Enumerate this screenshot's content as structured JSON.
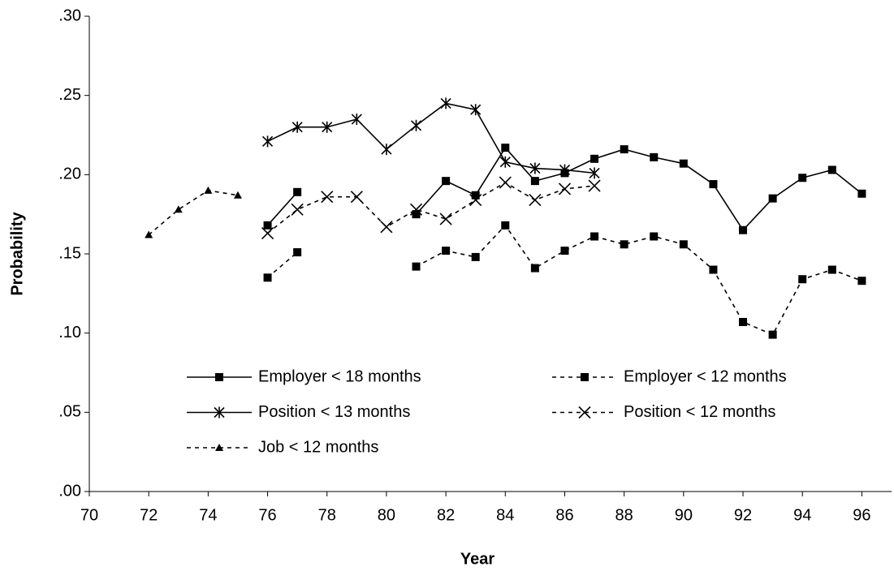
{
  "chart_data": {
    "type": "line",
    "x_label": "Year",
    "y_label": "Probability",
    "x": [
      72,
      73,
      74,
      75,
      76,
      77,
      78,
      79,
      80,
      81,
      82,
      83,
      84,
      85,
      86,
      87,
      88,
      89,
      90,
      91,
      92,
      93,
      94,
      95,
      96
    ],
    "series": [
      {
        "name": "Employer < 18 months",
        "color": "#000000",
        "style": "solid",
        "marker": "square",
        "values": [
          null,
          null,
          null,
          null,
          0.168,
          0.189,
          null,
          null,
          null,
          0.175,
          0.196,
          0.187,
          0.217,
          0.196,
          0.201,
          0.21,
          0.216,
          0.211,
          0.207,
          0.194,
          0.165,
          0.185,
          0.198,
          0.203,
          0.188
        ]
      },
      {
        "name": "Employer < 12 months",
        "color": "#000000",
        "style": "dashed",
        "marker": "square",
        "values": [
          null,
          null,
          null,
          null,
          0.135,
          0.151,
          null,
          null,
          null,
          0.142,
          0.152,
          0.148,
          0.168,
          0.141,
          0.152,
          0.161,
          0.156,
          0.161,
          0.156,
          0.14,
          0.107,
          0.099,
          0.134,
          0.14,
          0.133
        ]
      },
      {
        "name": "Position < 13 months",
        "color": "#000000",
        "style": "solid",
        "marker": "asterisk",
        "values": [
          null,
          null,
          null,
          null,
          0.221,
          0.23,
          0.23,
          0.235,
          0.216,
          0.231,
          0.245,
          0.241,
          0.208,
          0.204,
          0.203,
          0.201,
          null,
          null,
          null,
          null,
          null,
          null,
          null,
          null,
          null
        ]
      },
      {
        "name": "Position < 12 months",
        "color": "#000000",
        "style": "dashed",
        "marker": "cross",
        "values": [
          null,
          null,
          null,
          null,
          0.163,
          0.178,
          0.186,
          0.186,
          0.167,
          0.178,
          0.172,
          0.184,
          0.195,
          0.184,
          0.191,
          0.193,
          null,
          null,
          null,
          null,
          null,
          null,
          null,
          null,
          null
        ]
      },
      {
        "name": "Job < 12 months",
        "color": "#000000",
        "style": "dashed",
        "marker": "triangle",
        "values": [
          0.162,
          0.178,
          0.19,
          0.187,
          null,
          null,
          null,
          null,
          null,
          null,
          null,
          null,
          null,
          null,
          null,
          null,
          null,
          null,
          null,
          null,
          null,
          null,
          null,
          null,
          null
        ]
      }
    ],
    "xlim": [
      70,
      97
    ],
    "xticks": [
      70,
      72,
      74,
      76,
      78,
      80,
      82,
      84,
      86,
      88,
      90,
      92,
      94,
      96
    ],
    "ylim": [
      0,
      0.3
    ],
    "yticks": [
      {
        "value": 0,
        "label": ".00"
      },
      {
        "value": 0.05,
        "label": ".05"
      },
      {
        "value": 0.1,
        "label": ".10"
      },
      {
        "value": 0.15,
        "label": ".15"
      },
      {
        "value": 0.2,
        "label": ".20"
      },
      {
        "value": 0.25,
        "label": ".25"
      },
      {
        "value": 0.3,
        "label": ".30"
      }
    ],
    "grid": false,
    "legend": "inside-bottom-left"
  }
}
